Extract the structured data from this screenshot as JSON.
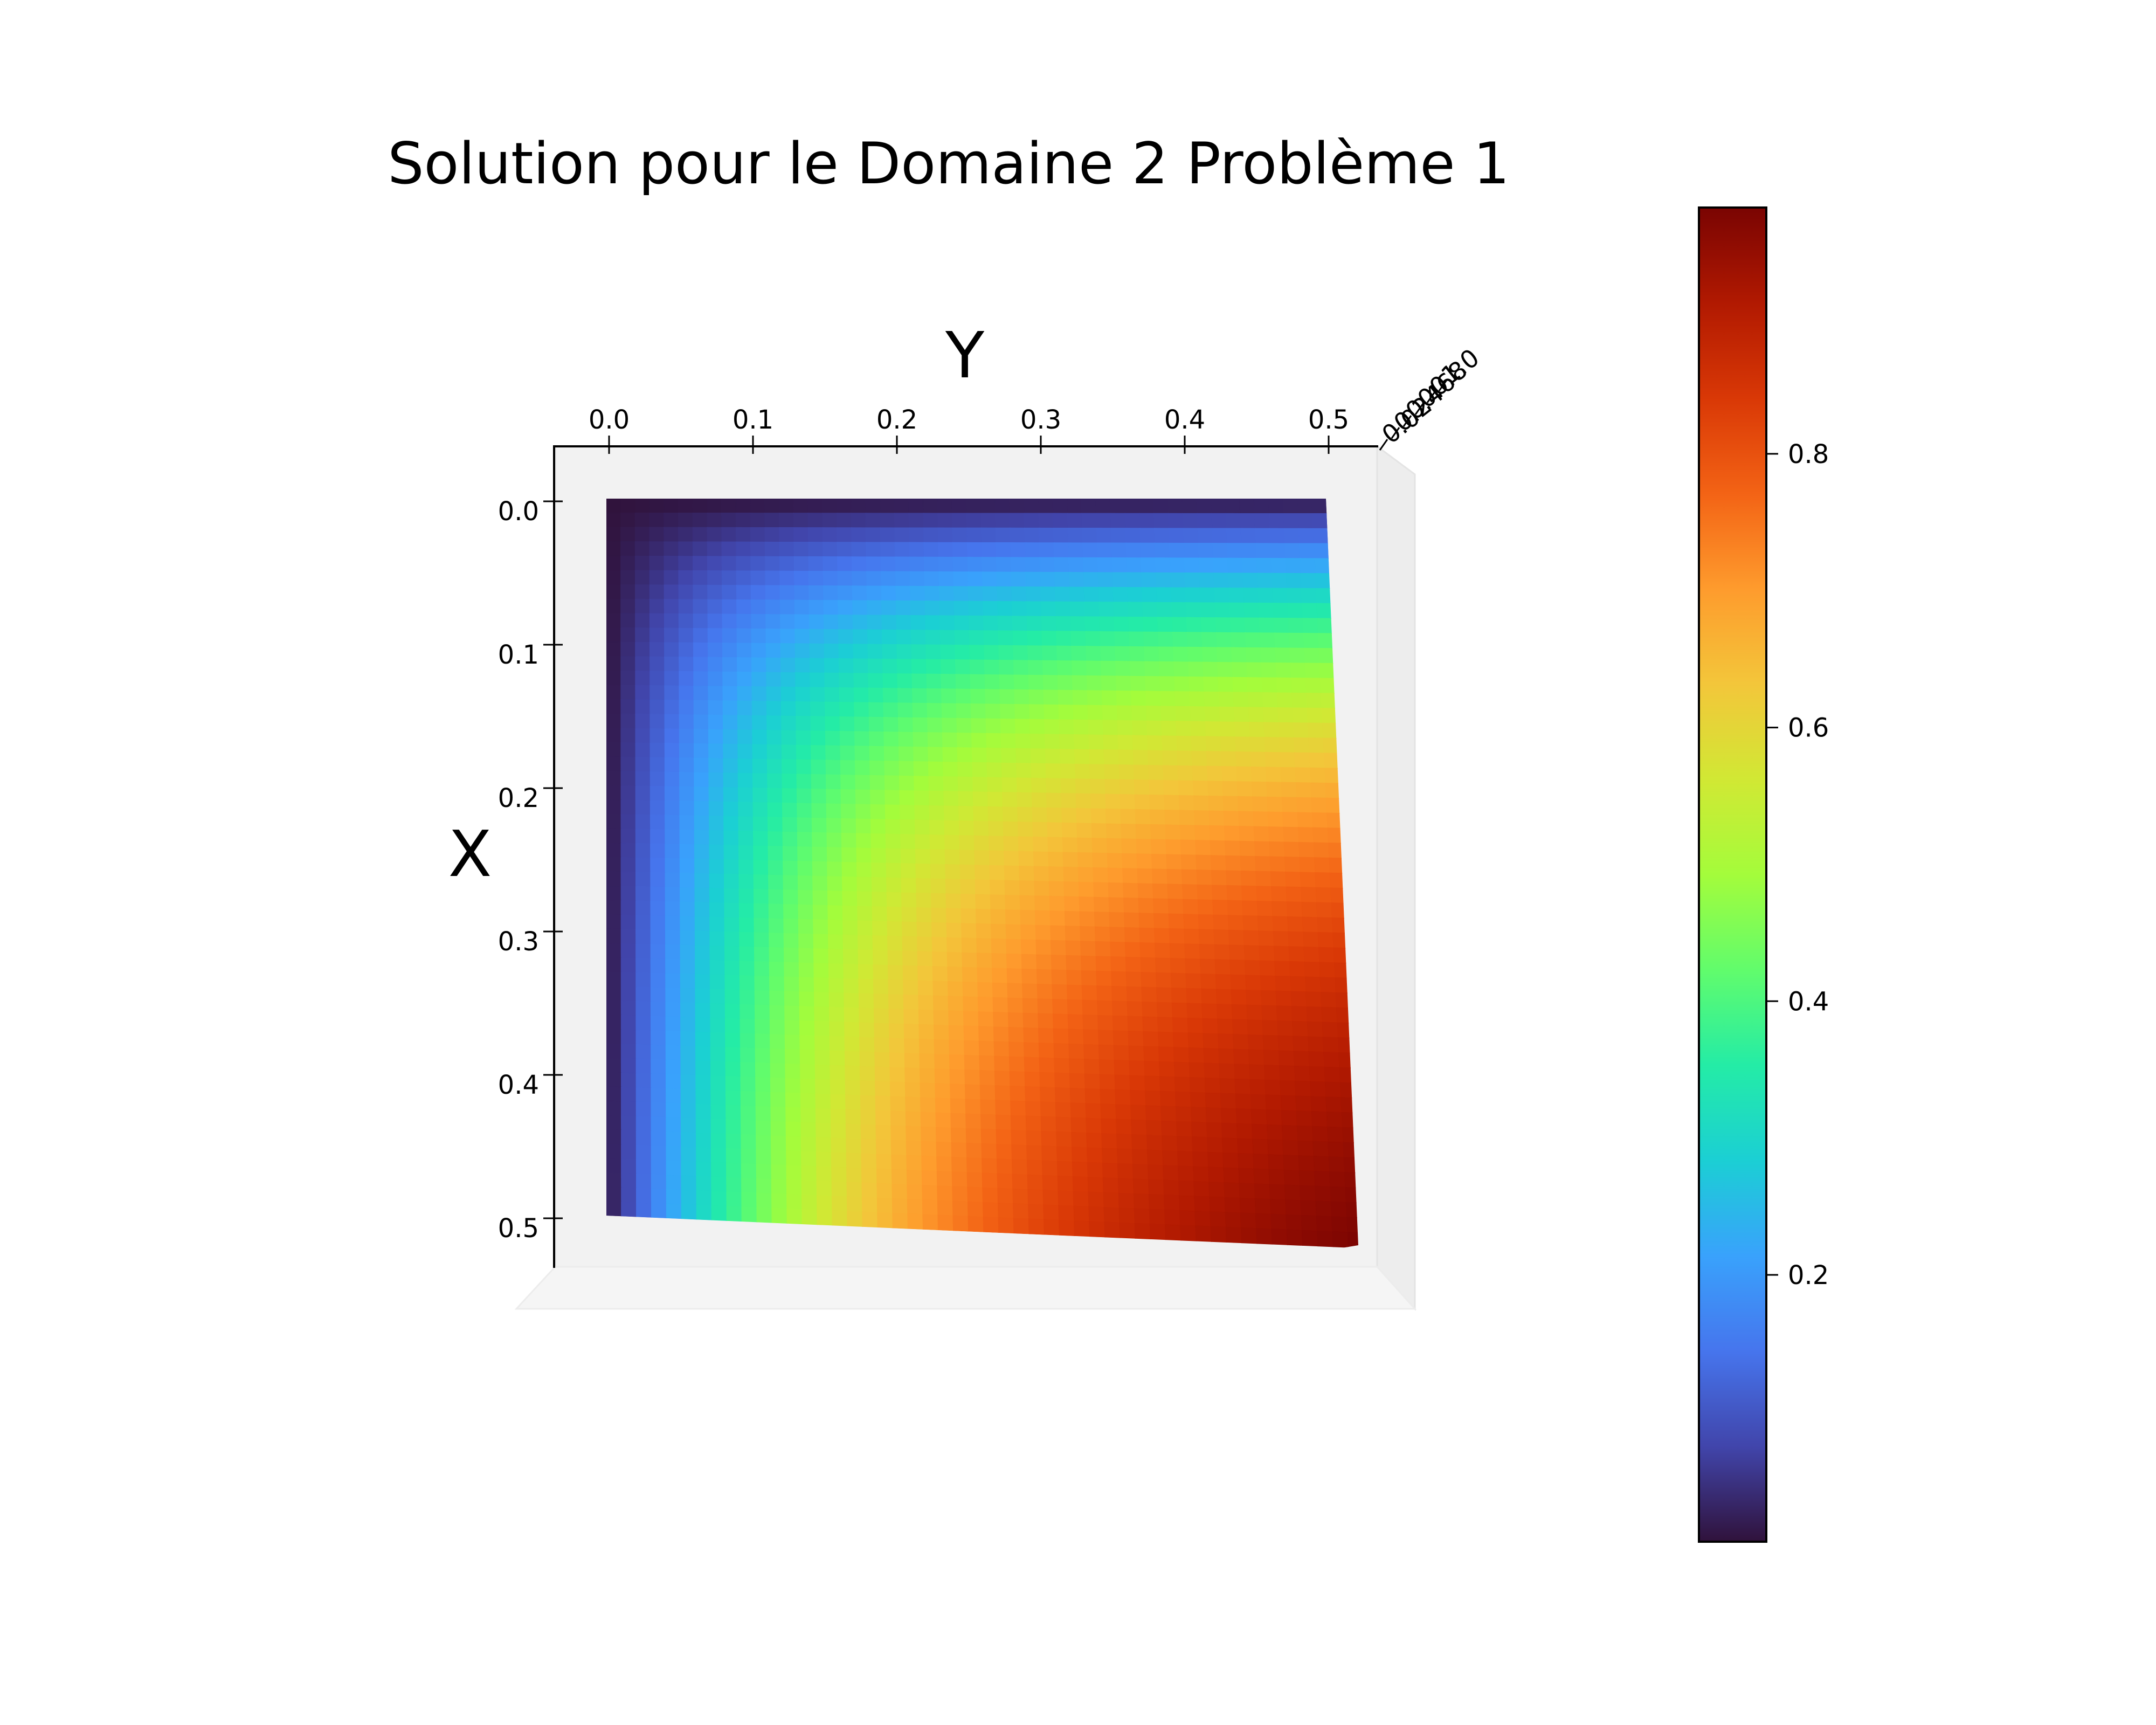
{
  "chart_data": {
    "type": "heatmap",
    "title": "Solution pour le Domaine 2 Problème 1",
    "xlabel": "Y",
    "ylabel": "X",
    "x_ticks": [
      "0.0",
      "0.1",
      "0.2",
      "0.3",
      "0.4",
      "0.5"
    ],
    "y_ticks": [
      "0.0",
      "0.1",
      "0.2",
      "0.3",
      "0.4",
      "0.5"
    ],
    "z_ticks": [
      "0.0",
      "0.2",
      "0.4",
      "0.6",
      "0.8",
      "1.0"
    ],
    "x_range": [
      0,
      0.5
    ],
    "y_range": [
      0,
      0.5
    ],
    "value_range": [
      0,
      0.98
    ],
    "grid_resolution": 50,
    "colormap": "turbo",
    "colorbar": {
      "ticks": [
        "0.2",
        "0.4",
        "0.6",
        "0.8"
      ],
      "tick_values": [
        0.2,
        0.4,
        0.6,
        0.8
      ],
      "range": [
        0.005,
        0.98
      ],
      "placement": "right"
    },
    "color_stops": [
      "#30123b",
      "#4145ab",
      "#4675ed",
      "#39a2fc",
      "#1bcfd4",
      "#24eca6",
      "#61fc6c",
      "#a4fc3b",
      "#d1e834",
      "#f3c63a",
      "#fe9b2d",
      "#f36315",
      "#d93806",
      "#b11901",
      "#7a0402"
    ]
  }
}
